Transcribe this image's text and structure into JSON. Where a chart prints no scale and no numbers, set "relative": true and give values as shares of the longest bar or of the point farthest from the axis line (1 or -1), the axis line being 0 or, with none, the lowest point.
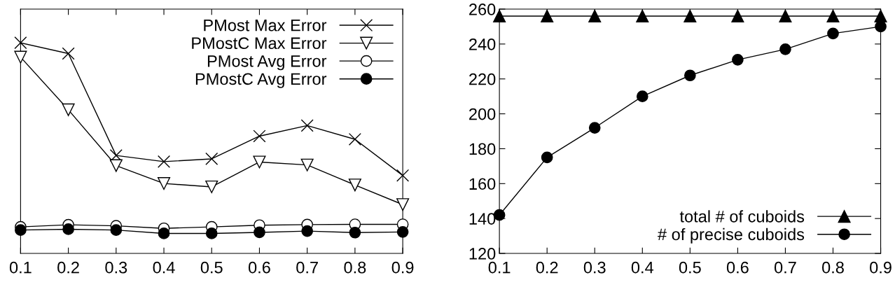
{
  "chart_data": [
    {
      "type": "line",
      "relative": true,
      "x": [
        0.1,
        0.2,
        0.3,
        0.4,
        0.5,
        0.6,
        0.7,
        0.8,
        0.9
      ],
      "xlim": [
        0.1,
        0.9
      ],
      "xticks": [
        0.1,
        0.2,
        0.3,
        0.4,
        0.5,
        0.6,
        0.7,
        0.8,
        0.9
      ],
      "legend": "top right",
      "grid": false,
      "series": [
        {
          "name": "PMost Max Error",
          "color": "#000000",
          "marker": "cross",
          "values": [
            1,
            0.949,
            0.465,
            0.436,
            0.449,
            0.557,
            0.607,
            0.542,
            0.37
          ]
        },
        {
          "name": "PMostC Max Error",
          "color": "#000000",
          "marker": "triangle_down_open",
          "values": [
            0.932,
            0.682,
            0.417,
            0.332,
            0.316,
            0.434,
            0.42,
            0.325,
            0.232
          ]
        },
        {
          "name": "PMost Avg Error",
          "color": "#000000",
          "marker": "circle_open",
          "values": [
            0.126,
            0.136,
            0.131,
            0.119,
            0.126,
            0.134,
            0.137,
            0.138,
            0.138
          ]
        },
        {
          "name": "PMostC Avg Error",
          "color": "#000000",
          "marker": "circle",
          "values": [
            0.111,
            0.115,
            0.111,
            0.095,
            0.095,
            0.1,
            0.106,
            0.099,
            0.102
          ]
        }
      ]
    },
    {
      "type": "line",
      "x": [
        0.1,
        0.2,
        0.3,
        0.4,
        0.5,
        0.6,
        0.7,
        0.8,
        0.9
      ],
      "xlim": [
        0.1,
        0.9
      ],
      "xticks": [
        0.1,
        0.2,
        0.3,
        0.4,
        0.5,
        0.6,
        0.7,
        0.8,
        0.9
      ],
      "ylim": [
        120,
        260
      ],
      "yticks": [
        120,
        140,
        160,
        180,
        200,
        220,
        240,
        260
      ],
      "legend": "bottom right",
      "grid": false,
      "series": [
        {
          "name": "total # of cuboids",
          "color": "#000000",
          "marker": "triangle",
          "values": [
            256,
            256,
            256,
            256,
            256,
            256,
            256,
            256,
            256
          ]
        },
        {
          "name": "# of precise cuboids",
          "color": "#000000",
          "marker": "circle",
          "values": [
            142,
            175,
            192,
            210,
            222,
            231,
            237,
            246,
            250
          ]
        }
      ]
    }
  ]
}
